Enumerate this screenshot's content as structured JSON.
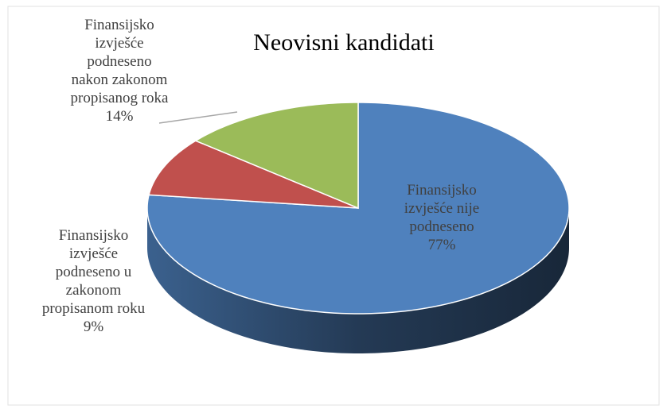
{
  "chart_data": {
    "type": "pie",
    "title": "Neovisni kandidati",
    "categories": [
      "Finansijsko izvješće nije podneseno",
      "Finansijsko izvješće podneseno u zakonom propisanom roku",
      "Finansijsko izvješće podneseno nakon zakonom propisanog roka"
    ],
    "values": [
      77,
      9,
      14
    ],
    "value_labels": [
      "77%",
      "9%",
      "14%"
    ],
    "colors": [
      "#4f81bd",
      "#c0504d",
      "#9bbb59"
    ],
    "three_d": true
  }
}
